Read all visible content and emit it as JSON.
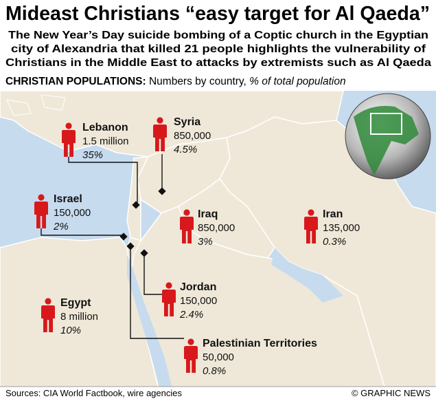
{
  "title": "Mideast Christians “easy target for Al Qaeda”",
  "subtitle": [
    "The New Year’s Day suicide bombing of a Coptic church in the Egyptian",
    "city of Alexandria that killed 21 people highlights the vulnerability of",
    "Christians in the Middle East to attacks by extremists such as Al Qaeda"
  ],
  "legend": {
    "heading": "CHRISTIAN POPULATIONS:",
    "description": "Numbers by country,",
    "unit_note": "% of total population"
  },
  "countries": [
    {
      "name": "Lebanon",
      "population": "1.5 million",
      "share": "35%"
    },
    {
      "name": "Syria",
      "population": "850,000",
      "share": "4.5%"
    },
    {
      "name": "Israel",
      "population": "150,000",
      "share": "2%"
    },
    {
      "name": "Iraq",
      "population": "850,000",
      "share": "3%"
    },
    {
      "name": "Iran",
      "population": "135,000",
      "share": "0.3%"
    },
    {
      "name": "Jordan",
      "population": "150,000",
      "share": "2.4%"
    },
    {
      "name": "Egypt",
      "population": "8 million",
      "share": "10%"
    },
    {
      "name": "Palestinian Territories",
      "population": "50,000",
      "share": "0.8%"
    }
  ],
  "footer": {
    "sources": "Sources: CIA World Factbook, wire agencies",
    "credit": "© GRAPHIC NEWS"
  }
}
